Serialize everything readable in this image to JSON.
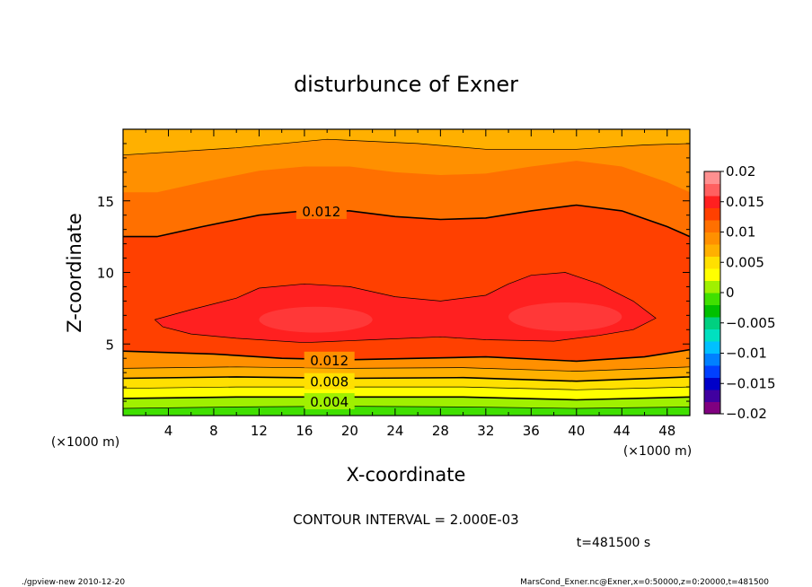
{
  "chart_data": {
    "type": "heatmap",
    "title": "disturbunce of Exner",
    "xlabel": "X-coordinate",
    "ylabel": "Z-coordinate",
    "x_unit": "(×1000 m)",
    "z_unit": "(×1000 m)",
    "xlim": [
      0,
      50
    ],
    "ylim": [
      0,
      20
    ],
    "x_ticks": [
      4,
      8,
      12,
      16,
      20,
      24,
      28,
      32,
      36,
      40,
      44,
      48
    ],
    "x_tick_labels": [
      "4",
      "8",
      "12",
      "16",
      "20",
      "24",
      "28",
      "32",
      "36",
      "40",
      "44",
      "48"
    ],
    "y_ticks": [
      5,
      10,
      15
    ],
    "y_tick_labels": [
      "5",
      "10",
      "15"
    ],
    "contour_interval": 0.002,
    "contour_labels": [
      {
        "value": 0.012,
        "text": "0.012",
        "x": 17.5,
        "z": 14.3
      },
      {
        "value": 0.012,
        "text": "0.012",
        "x": 18.2,
        "z": 3.9
      },
      {
        "value": 0.008,
        "text": "0.008",
        "x": 18.2,
        "z": 2.4
      },
      {
        "value": 0.004,
        "text": "0.004",
        "x": 18.2,
        "z": 1.0
      }
    ],
    "contour_lines": [
      {
        "value": 0.002,
        "points": [
          [
            0,
            0.5
          ],
          [
            10,
            0.6
          ],
          [
            20,
            0.65
          ],
          [
            30,
            0.6
          ],
          [
            40,
            0.5
          ],
          [
            50,
            0.6
          ]
        ]
      },
      {
        "value": 0.004,
        "points": [
          [
            0,
            1.2
          ],
          [
            10,
            1.3
          ],
          [
            20,
            1.3
          ],
          [
            30,
            1.3
          ],
          [
            40,
            1.1
          ],
          [
            50,
            1.3
          ]
        ]
      },
      {
        "value": 0.006,
        "points": [
          [
            0,
            1.9
          ],
          [
            10,
            2.0
          ],
          [
            20,
            2.0
          ],
          [
            30,
            2.0
          ],
          [
            40,
            1.8
          ],
          [
            50,
            2.0
          ]
        ]
      },
      {
        "value": 0.008,
        "points": [
          [
            0,
            2.6
          ],
          [
            10,
            2.7
          ],
          [
            20,
            2.6
          ],
          [
            30,
            2.65
          ],
          [
            40,
            2.4
          ],
          [
            50,
            2.7
          ]
        ]
      },
      {
        "value": 0.01,
        "points": [
          [
            0,
            3.3
          ],
          [
            10,
            3.4
          ],
          [
            20,
            3.3
          ],
          [
            30,
            3.35
          ],
          [
            40,
            3.1
          ],
          [
            50,
            3.4
          ]
        ]
      },
      {
        "value": 0.012,
        "points": [
          [
            0,
            4.5
          ],
          [
            8,
            4.3
          ],
          [
            14,
            4.0
          ],
          [
            20,
            3.9
          ],
          [
            26,
            4.0
          ],
          [
            32,
            4.1
          ],
          [
            40,
            3.8
          ],
          [
            46,
            4.1
          ],
          [
            50,
            4.6
          ]
        ]
      },
      {
        "value": 0.014,
        "points": [
          [
            2.8,
            6.7
          ],
          [
            6,
            7.4
          ],
          [
            10,
            8.2
          ],
          [
            12,
            8.9
          ],
          [
            16,
            9.2
          ],
          [
            20,
            9.0
          ],
          [
            24,
            8.3
          ],
          [
            28,
            8.0
          ],
          [
            32,
            8.4
          ],
          [
            34,
            9.2
          ],
          [
            36,
            9.8
          ],
          [
            39,
            10.0
          ],
          [
            42,
            9.2
          ],
          [
            45,
            8.0
          ],
          [
            47,
            6.8
          ],
          [
            45,
            6.0
          ],
          [
            42,
            5.6
          ],
          [
            38,
            5.2
          ],
          [
            32,
            5.3
          ],
          [
            28,
            5.5
          ],
          [
            22,
            5.3
          ],
          [
            16,
            5.1
          ],
          [
            10,
            5.4
          ],
          [
            6,
            5.7
          ],
          [
            3.5,
            6.2
          ],
          [
            2.8,
            6.7
          ]
        ]
      },
      {
        "value": 0.012,
        "points": [
          [
            0,
            12.5
          ],
          [
            3,
            12.5
          ],
          [
            7,
            13.2
          ],
          [
            12,
            14.0
          ],
          [
            16,
            14.3
          ],
          [
            20,
            14.3
          ],
          [
            24,
            13.9
          ],
          [
            28,
            13.7
          ],
          [
            32,
            13.8
          ],
          [
            36,
            14.3
          ],
          [
            40,
            14.7
          ],
          [
            44,
            14.3
          ],
          [
            48,
            13.2
          ],
          [
            50,
            12.5
          ]
        ]
      },
      {
        "value": 0.01,
        "points": [
          [
            0,
            18.2
          ],
          [
            10,
            18.7
          ],
          [
            18,
            19.3
          ],
          [
            26,
            19.0
          ],
          [
            32,
            18.6
          ],
          [
            40,
            18.6
          ],
          [
            46,
            18.9
          ],
          [
            50,
            19.0
          ]
        ]
      }
    ],
    "colorbar": {
      "min": -0.02,
      "max": 0.02,
      "tick_labels": [
        "0.02",
        "0.015",
        "0.01",
        "0.005",
        "0",
        "−0.005",
        "−0.01",
        "−0.015",
        "−0.02"
      ],
      "colors": [
        "#800080",
        "#4000a0",
        "#0000c8",
        "#0040ff",
        "#0080ff",
        "#00c0ff",
        "#00e0c0",
        "#00d080",
        "#00c000",
        "#40e000",
        "#a0f000",
        "#ffff00",
        "#ffe000",
        "#ffb000",
        "#ff9000",
        "#ff7000",
        "#ff4000",
        "#ff2020",
        "#ff6060",
        "#ff9090"
      ]
    },
    "annotations": {
      "contour_interval": "CONTOUR INTERVAL = 2.000E-03",
      "time": "t=481500 s",
      "footer_left": "./gpview-new   2010-12-20",
      "footer_right": "MarsCond_Exner.nc@Exner,x=0:50000,z=0:20000,t=481500"
    }
  }
}
